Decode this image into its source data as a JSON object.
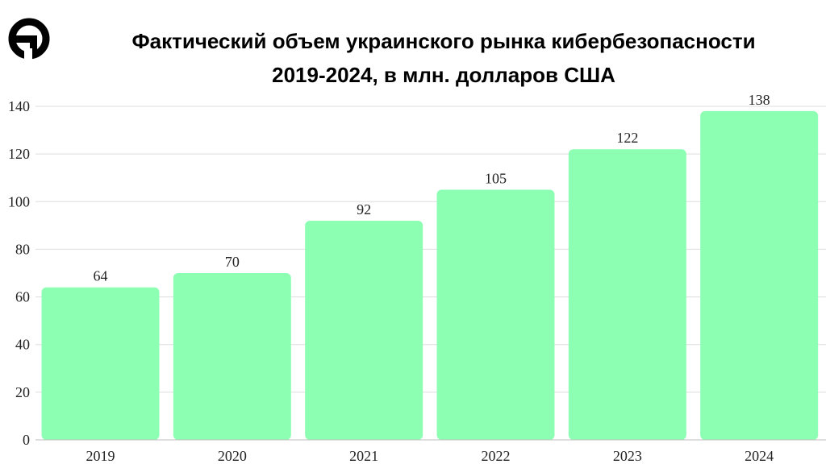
{
  "brand_color": "#000000",
  "chart_data": {
    "type": "bar",
    "title": "Фактический объем украинского рынка кибербезопасности 2019-2024, в млн. долларов США",
    "title_lines": [
      "Фактический объем украинского рынка кибербезопасности",
      "2019-2024, в млн. долларов США"
    ],
    "categories": [
      "2019",
      "2020",
      "2021",
      "2022",
      "2023",
      "2024"
    ],
    "values": [
      64,
      70,
      92,
      105,
      122,
      138
    ],
    "value_labels": [
      "64",
      "70",
      "92",
      "105",
      "122",
      "138"
    ],
    "yticks": [
      "0",
      "20",
      "40",
      "60",
      "80",
      "100",
      "120",
      "140"
    ],
    "ylim": [
      0,
      140
    ],
    "xlabel": "",
    "ylabel": "",
    "grid": true,
    "legend": "none",
    "bar_color": "#8cffb3",
    "grid_color": "#dddddd"
  }
}
